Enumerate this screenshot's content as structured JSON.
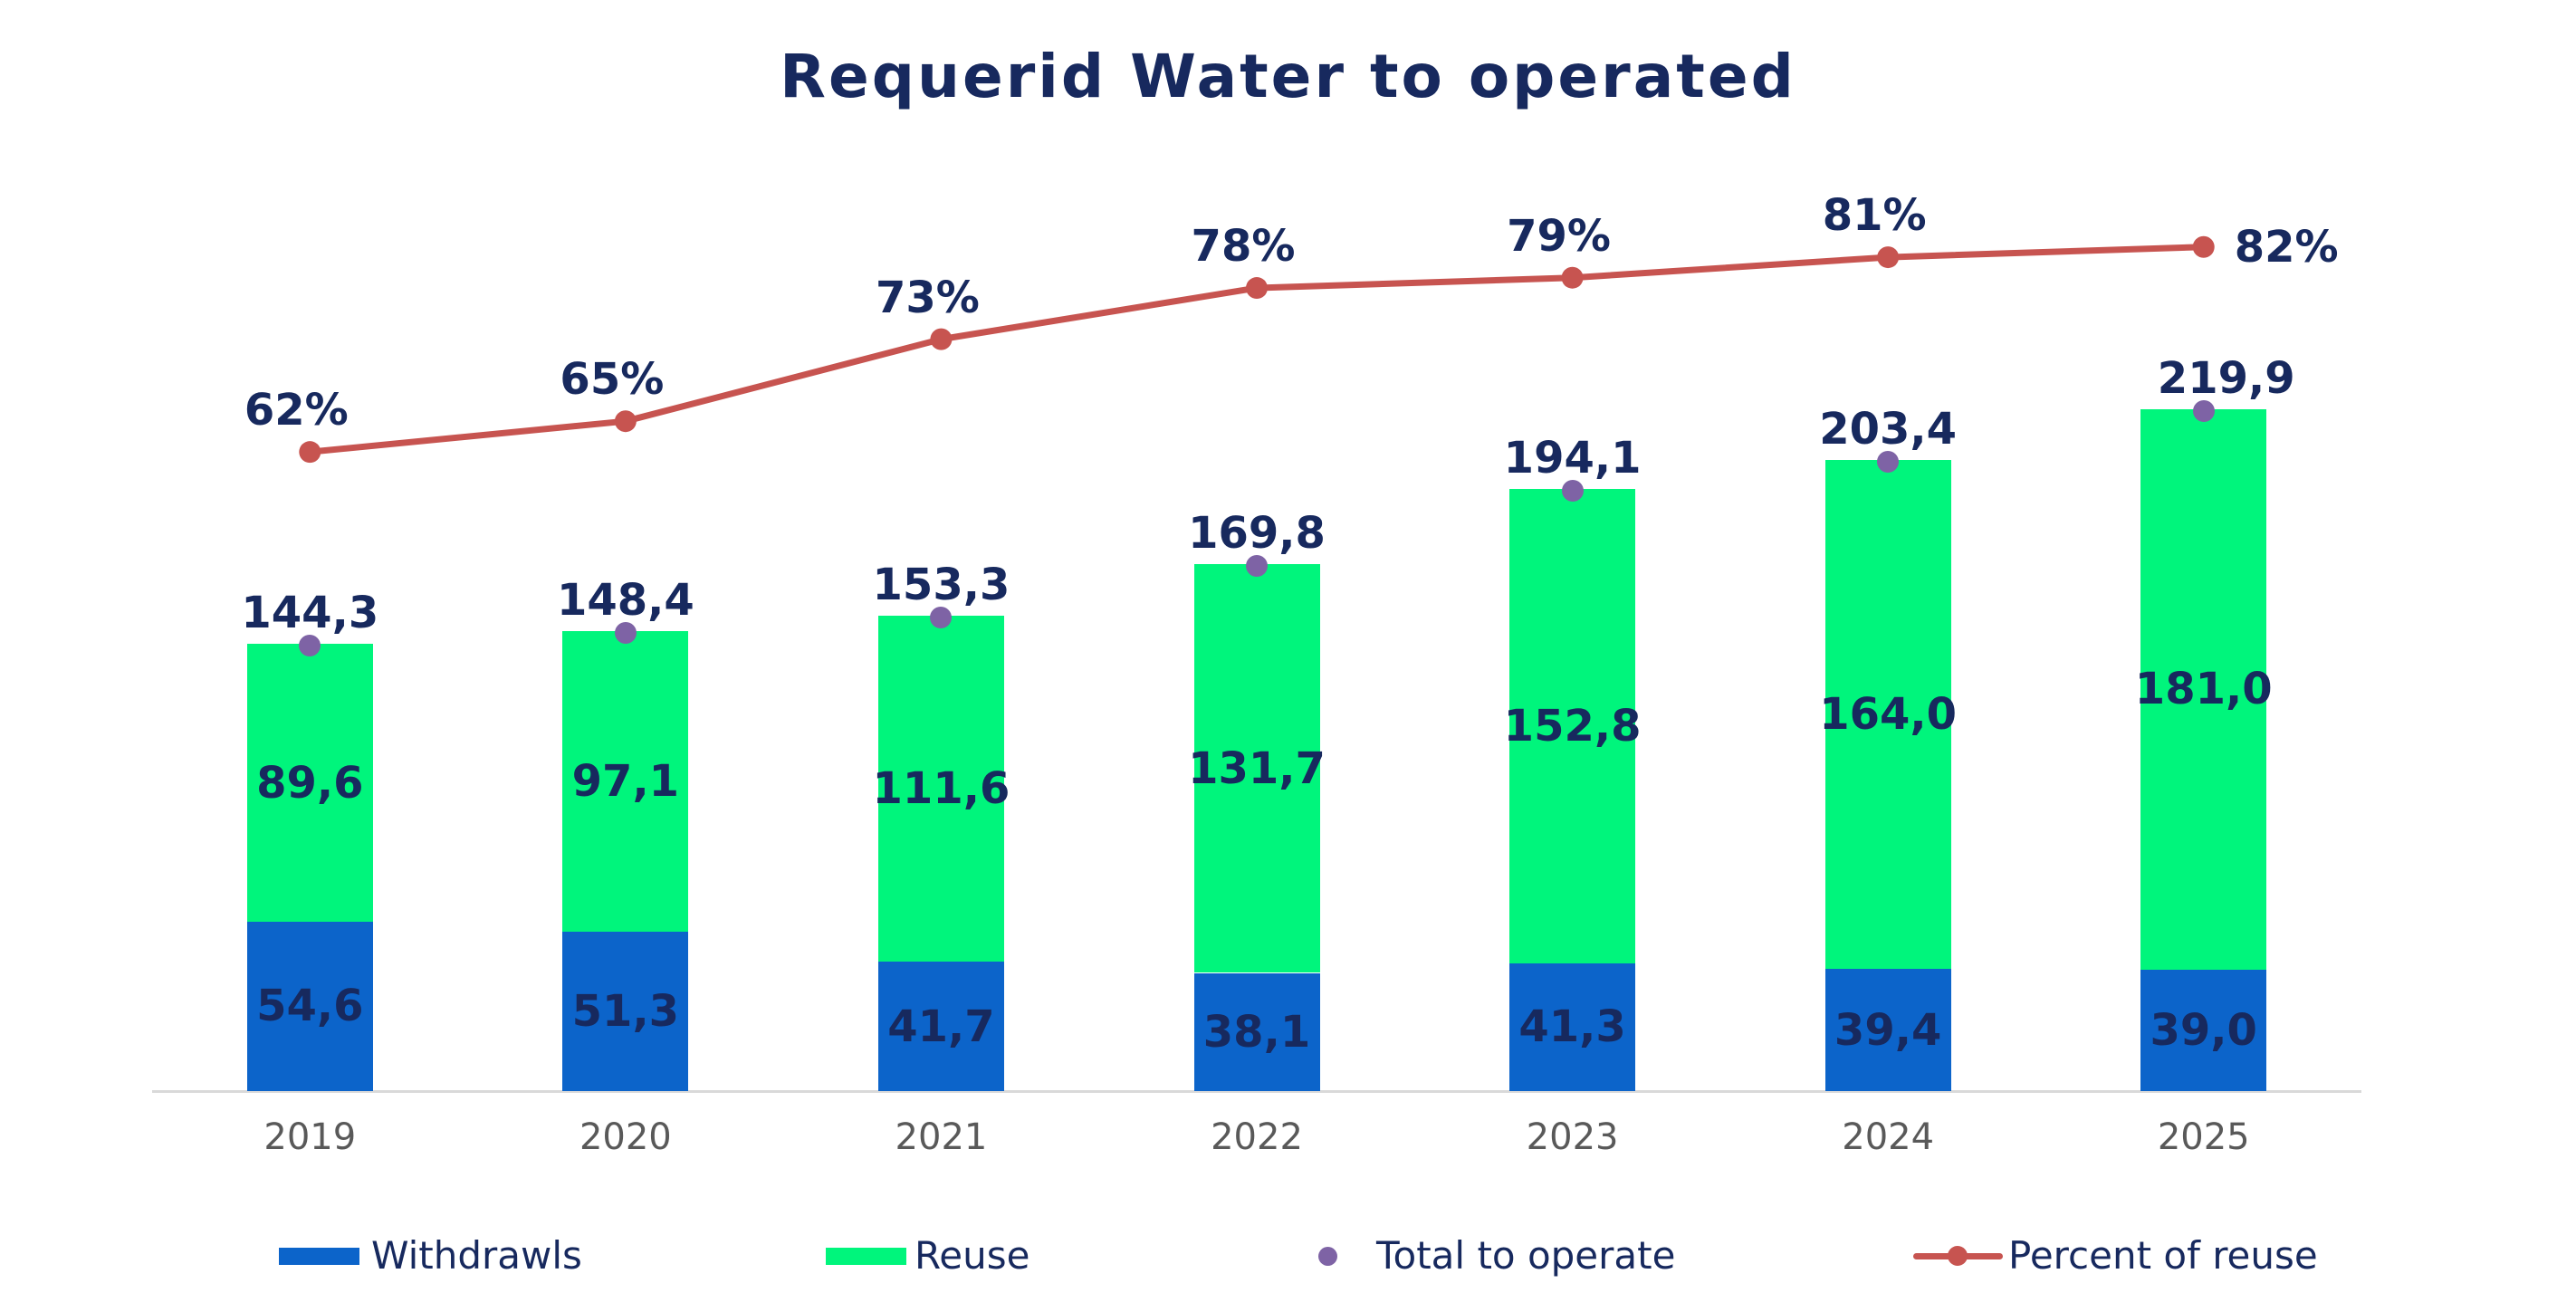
{
  "title": "Requerid Water to operated",
  "colors": {
    "navy_text": "#17295E",
    "withdrawls_bar": "#0C64CA",
    "reuse_bar": "#00F57C",
    "total_marker": "#7E63A5",
    "percent_line": "#C75450",
    "year_text": "#595959",
    "axis_line": "#D9D9D9"
  },
  "chart_data": {
    "type": "combo",
    "title": "Requerid Water to operated",
    "categories": [
      "2019",
      "2020",
      "2021",
      "2022",
      "2023",
      "2024",
      "2025"
    ],
    "series": [
      {
        "name": "Withdrawls",
        "type": "bar",
        "color": "#0C64CA",
        "values": [
          54.6,
          51.3,
          41.7,
          38.1,
          41.3,
          39.4,
          39.0
        ]
      },
      {
        "name": "Reuse",
        "type": "bar",
        "color": "#00F57C",
        "values": [
          89.6,
          97.1,
          111.6,
          131.7,
          152.8,
          164.0,
          181.0
        ]
      },
      {
        "name": "Total to operate",
        "type": "scatter",
        "color": "#7E63A5",
        "values": [
          144.3,
          148.4,
          153.3,
          169.8,
          194.1,
          203.4,
          219.9
        ]
      },
      {
        "name": "Percent of reuse",
        "type": "line",
        "color": "#C75450",
        "values": [
          62,
          65,
          73,
          78,
          79,
          81,
          82
        ],
        "label_format": "percent"
      }
    ],
    "stacked": true,
    "grid": false,
    "legend_position": "bottom",
    "value_decimal_separator": ","
  },
  "legend": {
    "items": [
      {
        "label": "Withdrawls",
        "swatch": "rect",
        "color": "#0C64CA"
      },
      {
        "label": "Reuse",
        "swatch": "rect",
        "color": "#00F57C"
      },
      {
        "label": "Total to operate",
        "swatch": "dot",
        "color": "#7E63A5"
      },
      {
        "label": "Percent of reuse",
        "swatch": "line-dot",
        "color": "#C75450"
      }
    ]
  }
}
